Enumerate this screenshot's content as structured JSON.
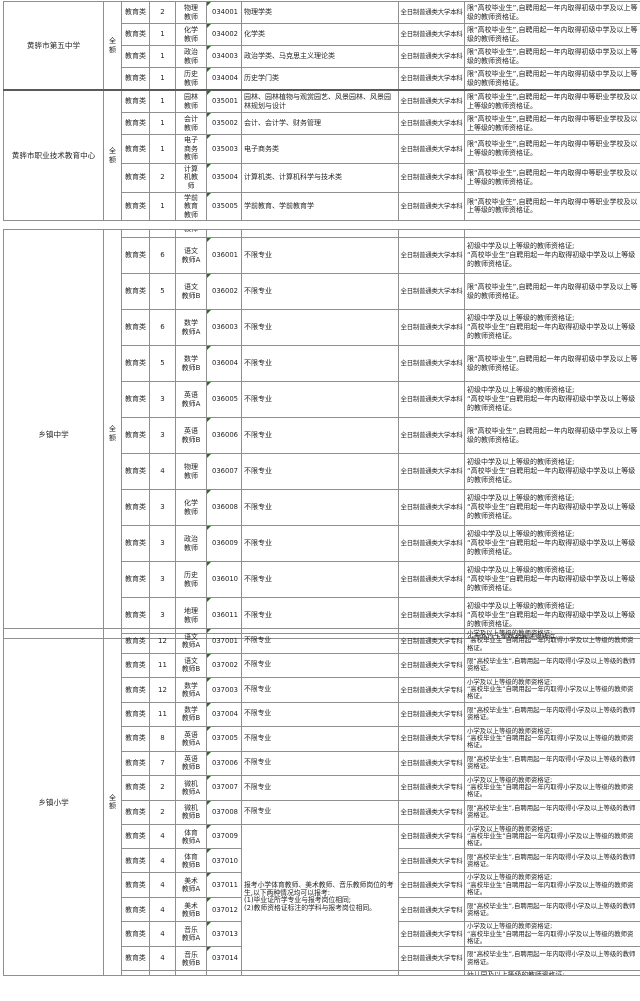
{
  "colors": {
    "background": "#ffffff",
    "border_gray": "#8f8f8f",
    "text": "#1f1f1f",
    "error_triangle_green": "#2e6b2e"
  },
  "table_fragments": [
    {
      "id": "f1",
      "rows": [
        {
          "kind": "data",
          "school": "黄骅市第五中学",
          "school_rowspan": 4,
          "funding": "全额",
          "funding_rowspan": 4,
          "category": "教育类",
          "count": "2",
          "position": "物理\n教师",
          "code": "034001",
          "major": "物理学类",
          "education": "全日制普通类大学本科",
          "requirement": "限“高校毕业生”,自聘用起一年内取得初级中学及以上等级的教师资格证。"
        },
        {
          "kind": "data",
          "category": "教育类",
          "count": "1",
          "position": "化学\n教师",
          "code": "034002",
          "major": "化学类",
          "education": "全日制普通类大学本科",
          "requirement": "限“高校毕业生”,自聘用起一年内取得初级中学及以上等级的教师资格证。"
        },
        {
          "kind": "data",
          "category": "教育类",
          "count": "1",
          "position": "政治\n教师",
          "code": "034003",
          "major": "政治学类、马克思主义理论类",
          "education": "全日制普通类大学本科",
          "requirement": "限“高校毕业生”,自聘用起一年内取得初级中学及以上等级的教师资格证。"
        },
        {
          "kind": "data",
          "category": "教育类",
          "count": "1",
          "position": "历史\n教师",
          "code": "034004",
          "major": "历史学门类",
          "education": "全日制普通类大学本科",
          "requirement": "限“高校毕业生”,自聘用起一年内取得初级中学及以上等级的教师资格证。"
        },
        {
          "kind": "data",
          "group_separator": true,
          "school": "黄骅市职业技术教育中心",
          "school_rowspan": 5,
          "funding": "全额",
          "funding_rowspan": 5,
          "category": "教育类",
          "count": "1",
          "position": "园林\n教师",
          "code": "035001",
          "major": "园林、园林植物与观赏园艺、风景园林、风景园林规划与设计",
          "education": "全日制普通类大学本科",
          "requirement": "限“高校毕业生”,自聘用起一年内取得中等职业学校及以上等级的教师资格证。"
        },
        {
          "kind": "data",
          "category": "教育类",
          "count": "1",
          "position": "会计\n教师",
          "code": "035002",
          "major": "会计、会计学、财务管理",
          "education": "全日制普通类大学本科",
          "requirement": "限“高校毕业生”,自聘用起一年内取得中等职业学校及以上等级的教师资格证。"
        },
        {
          "kind": "data",
          "category": "教育类",
          "count": "1",
          "position": "电子\n商务\n教师",
          "code": "035003",
          "major": "电子商务类",
          "education": "全日制普通类大学本科",
          "requirement": "限“高校毕业生”,自聘用起一年内取得中等职业学校及以上等级的教师资格证。"
        },
        {
          "kind": "data",
          "category": "教育类",
          "count": "2",
          "position": "计算\n机教\n师",
          "code": "035004",
          "major": "计算机类、计算机科学与技术类",
          "education": "全日制普通类大学本科",
          "requirement": "限“高校毕业生”,自聘用起一年内取得中等职业学校及以上等级的教师资格证。"
        },
        {
          "kind": "data",
          "category": "教育类",
          "count": "1",
          "position": "学前\n教育\n教师",
          "code": "035005",
          "major": "学前教育、学前教育学",
          "education": "全日制普通类大学本科",
          "requirement": "限“高校毕业生”,自聘用起一年内取得中等职业学校及以上等级的教师资格证。"
        }
      ]
    },
    {
      "id": "f2",
      "rows": [
        {
          "kind": "sliver_top",
          "school": "乡镇中学",
          "school_rowspan": 13,
          "funding": "全额",
          "funding_rowspan": 13,
          "position_clip": "教师"
        },
        {
          "kind": "data",
          "category": "教育类",
          "count": "6",
          "position": "语文\n教师A",
          "code": "036001",
          "major": "不限专业",
          "education": "全日制普通类大学本科",
          "requirement": "初级中学及以上等级的教师资格证;\n“高校毕业生”自聘用起一年内取得初级中学及以上等级的教师资格证。"
        },
        {
          "kind": "data",
          "category": "教育类",
          "count": "5",
          "position": "语文\n教师B",
          "code": "036002",
          "major": "不限专业",
          "education": "全日制普通类大学本科",
          "requirement": "限“高校毕业生”,自聘用起一年内取得初级中学及以上等级的教师资格证。"
        },
        {
          "kind": "data",
          "category": "教育类",
          "count": "6",
          "position": "数学\n教师A",
          "code": "036003",
          "major": "不限专业",
          "education": "全日制普通类大学本科",
          "requirement": "初级中学及以上等级的教师资格证;\n“高校毕业生”自聘用起一年内取得初级中学及以上等级的教师资格证。"
        },
        {
          "kind": "data",
          "category": "教育类",
          "count": "5",
          "position": "数学\n教师B",
          "code": "036004",
          "major": "不限专业",
          "education": "全日制普通类大学本科",
          "requirement": "限“高校毕业生”,自聘用起一年内取得初级中学及以上等级的教师资格证。"
        },
        {
          "kind": "data",
          "category": "教育类",
          "count": "3",
          "position": "英语\n教师A",
          "code": "036005",
          "major": "不限专业",
          "education": "全日制普通类大学本科",
          "requirement": "初级中学及以上等级的教师资格证;\n“高校毕业生”自聘用起一年内取得初级中学及以上等级的教师资格证。"
        },
        {
          "kind": "data",
          "category": "教育类",
          "count": "3",
          "position": "英语\n教师B",
          "code": "036006",
          "major": "不限专业",
          "education": "全日制普通类大学本科",
          "requirement": "限“高校毕业生”,自聘用起一年内取得初级中学及以上等级的教师资格证。"
        },
        {
          "kind": "data",
          "category": "教育类",
          "count": "4",
          "position": "物理\n教师",
          "code": "036007",
          "major": "不限专业",
          "education": "全日制普通类大学本科",
          "requirement": "初级中学及以上等级的教师资格证;\n“高校毕业生”自聘用起一年内取得初级中学及以上等级的教师资格证。"
        },
        {
          "kind": "data",
          "category": "教育类",
          "count": "3",
          "position": "化学\n教师",
          "code": "036008",
          "major": "不限专业",
          "education": "全日制普通类大学本科",
          "requirement": "初级中学及以上等级的教师资格证;\n“高校毕业生”自聘用起一年内取得初级中学及以上等级的教师资格证。"
        },
        {
          "kind": "data",
          "category": "教育类",
          "count": "3",
          "position": "政治\n教师",
          "code": "036009",
          "major": "不限专业",
          "education": "全日制普通类大学本科",
          "requirement": "初级中学及以上等级的教师资格证;\n“高校毕业生”自聘用起一年内取得初级中学及以上等级的教师资格证。"
        },
        {
          "kind": "data",
          "category": "教育类",
          "count": "3",
          "position": "历史\n教师",
          "code": "036010",
          "major": "不限专业",
          "education": "全日制普通类大学本科",
          "requirement": "初级中学及以上等级的教师资格证;\n“高校毕业生”自聘用起一年内取得初级中学及以上等级的教师资格证。"
        },
        {
          "kind": "data",
          "category": "教育类",
          "count": "3",
          "position": "地理\n教师",
          "code": "036011",
          "major": "不限专业",
          "education": "全日制普通类大学本科",
          "requirement": "初级中学及以上等级的教师资格证;\n“高校毕业生”自聘用起一年内取得初级中学及以上等级的教师资格证。"
        },
        {
          "kind": "sliver_bottom",
          "requirement_clip": "小学及以上等级的教师资格证;"
        }
      ]
    },
    {
      "id": "f3",
      "rows": [
        {
          "kind": "data",
          "school": "乡镇小学",
          "school_rowspan": 15,
          "funding": "全额",
          "funding_rowspan": 15,
          "category": "教育类",
          "count": "12",
          "position": "语文\n教师A",
          "code": "037001",
          "major": "不限专业",
          "education": "全日制普通类大学专科",
          "requirement": "小学及以上等级的教师资格证;\n“高校毕业生”自聘用起一年内取得小学及以上等级的教师资格证。"
        },
        {
          "kind": "data",
          "category": "教育类",
          "count": "11",
          "position": "语文\n教师B",
          "code": "037002",
          "major": "不限专业",
          "education": "全日制普通类大学专科",
          "requirement": "限“高校毕业生”,自聘用起一年内取得小学及以上等级的教师资格证。"
        },
        {
          "kind": "data",
          "category": "教育类",
          "count": "12",
          "position": "数学\n教师A",
          "code": "037003",
          "major": "不限专业",
          "education": "全日制普通类大学专科",
          "requirement": "小学及以上等级的教师资格证;\n“高校毕业生”自聘用起一年内取得小学及以上等级的教师资格证。"
        },
        {
          "kind": "data",
          "category": "教育类",
          "count": "11",
          "position": "数学\n教师B",
          "code": "037004",
          "major": "不限专业",
          "education": "全日制普通类大学专科",
          "requirement": "限“高校毕业生”,自聘用起一年内取得小学及以上等级的教师资格证。"
        },
        {
          "kind": "data",
          "category": "教育类",
          "count": "8",
          "position": "英语\n教师A",
          "code": "037005",
          "major": "不限专业",
          "education": "全日制普通类大学专科",
          "requirement": "小学及以上等级的教师资格证;\n“高校毕业生”自聘用起一年内取得小学及以上等级的教师资格证。"
        },
        {
          "kind": "data",
          "category": "教育类",
          "count": "7",
          "position": "英语\n教师B",
          "code": "037006",
          "major": "不限专业",
          "education": "全日制普通类大学专科",
          "requirement": "限“高校毕业生”,自聘用起一年内取得小学及以上等级的教师资格证。"
        },
        {
          "kind": "data",
          "category": "教育类",
          "count": "2",
          "position": "微机\n教师A",
          "code": "037007",
          "major": "不限专业",
          "education": "全日制普通类大学专科",
          "requirement": "小学及以上等级的教师资格证;\n“高校毕业生”自聘用起一年内取得小学及以上等级的教师资格证。"
        },
        {
          "kind": "data",
          "category": "教育类",
          "count": "2",
          "position": "微机\n教师B",
          "code": "037008",
          "major": "不限专业",
          "education": "全日制普通类大学专科",
          "requirement": "限“高校毕业生”,自聘用起一年内取得小学及以上等级的教师资格证。"
        },
        {
          "kind": "data",
          "category": "教育类",
          "count": "4",
          "position": "体育\n教师A",
          "code": "037009",
          "major": "报考小学体育教师、美术教师、音乐教师岗位的考生,以下两种情况均可以报考:\n(1)毕业证所学专业与报考岗位相同;\n(2)教师资格证标注的学科与报考岗位相同。",
          "major_rowspan": 6,
          "education": "全日制普通类大学专科",
          "requirement": "小学及以上等级的教师资格证;\n“高校毕业生”自聘用起一年内取得小学及以上等级的教师资格证。"
        },
        {
          "kind": "data",
          "category": "教育类",
          "count": "4",
          "position": "体育\n教师B",
          "code": "037010",
          "major_omit": true,
          "education": "全日制普通类大学专科",
          "requirement": "限“高校毕业生”,自聘用起一年内取得小学及以上等级的教师资格证。"
        },
        {
          "kind": "data",
          "category": "教育类",
          "count": "4",
          "position": "美术\n教师A",
          "code": "037011",
          "major_omit": true,
          "education": "全日制普通类大学专科",
          "requirement": "小学及以上等级的教师资格证;\n“高校毕业生”自聘用起一年内取得小学及以上等级的教师资格证。"
        },
        {
          "kind": "data",
          "category": "教育类",
          "count": "4",
          "position": "美术\n教师B",
          "code": "037012",
          "major_omit": true,
          "education": "全日制普通类大学专科",
          "requirement": "限“高校毕业生”,自聘用起一年内取得小学及以上等级的教师资格证。"
        },
        {
          "kind": "data",
          "category": "教育类",
          "count": "4",
          "position": "音乐\n教师A",
          "code": "037013",
          "major_omit": true,
          "education": "全日制普通类大学专科",
          "requirement": "小学及以上等级的教师资格证;\n“高校毕业生”自聘用起一年内取得小学及以上等级的教师资格证。"
        },
        {
          "kind": "data",
          "category": "教育类",
          "count": "4",
          "position": "音乐\n教师B",
          "code": "037014",
          "major_omit": true,
          "education": "全日制普通类大学专科",
          "requirement": "限“高校毕业生”,自聘用起一年内取得小学及以上等级的教师资格证。"
        },
        {
          "kind": "sliver_bottom",
          "requirement_clip": "幼儿园及以上等级的教师资格证;"
        }
      ]
    }
  ]
}
